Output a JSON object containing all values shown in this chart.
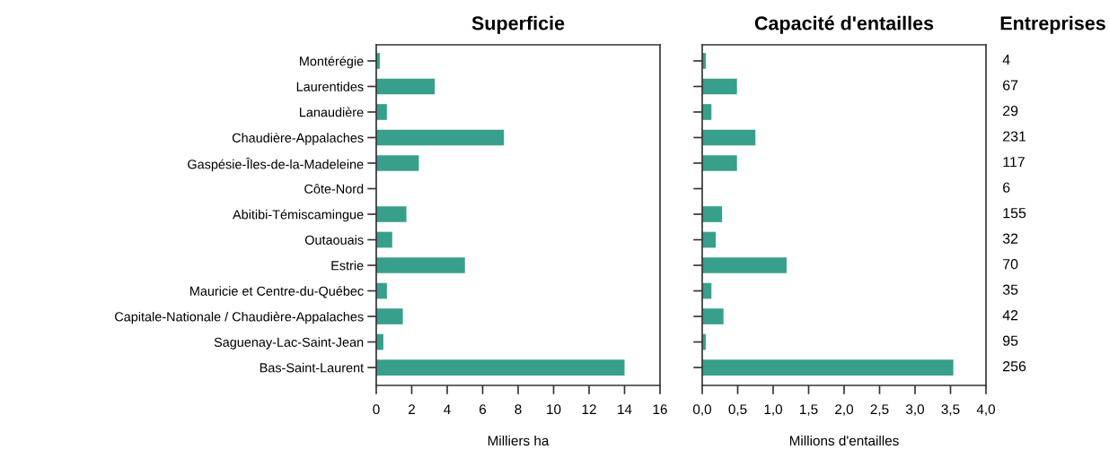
{
  "chart_data": [
    {
      "type": "bar",
      "orientation": "horizontal",
      "title": "Superficie",
      "xlabel": "Milliers ha",
      "categories": [
        "Montérégie",
        "Laurentides",
        "Lanaudière",
        "Chaudière-Appalaches",
        "Gaspésie-Îles-de-la-Madeleine",
        "Côte-Nord",
        "Abitibi-Témiscamingue",
        "Outaouais",
        "Estrie",
        "Mauricie et Centre-du-Québec",
        "Capitale-Nationale / Chaudière-Appalaches",
        "Saguenay-Lac-Saint-Jean",
        "Bas-Saint-Laurent"
      ],
      "values": [
        0.2,
        3.3,
        0.6,
        7.2,
        2.4,
        0,
        1.7,
        0.9,
        5.0,
        0.6,
        1.5,
        0.4,
        14.0
      ],
      "color": "#38a08a",
      "xlim": [
        0,
        16
      ],
      "xticks": [
        0,
        2,
        4,
        6,
        8,
        10,
        12,
        14,
        16
      ]
    },
    {
      "type": "bar",
      "orientation": "horizontal",
      "title": "Capacité d'entailles",
      "xlabel": "Millions d'entailles",
      "values": [
        0.05,
        0.49,
        0.13,
        0.75,
        0.49,
        0,
        0.28,
        0.19,
        1.19,
        0.13,
        0.3,
        0.05,
        3.54
      ],
      "color": "#38a08a",
      "xlim": [
        0,
        4
      ],
      "xticks": [
        {
          "value": 0,
          "label": "0,0"
        },
        {
          "value": 0.5,
          "label": "0,5"
        },
        {
          "value": 1,
          "label": "1,0"
        },
        {
          "value": 1.5,
          "label": "1,5"
        },
        {
          "value": 2,
          "label": "2,0"
        },
        {
          "value": 2.5,
          "label": "2,5"
        },
        {
          "value": 3,
          "label": "3,0"
        },
        {
          "value": 3.5,
          "label": "3,5"
        },
        {
          "value": 4,
          "label": "4,0"
        }
      ],
      "tick_labels": "x"
    },
    {
      "type": "other",
      "title": "Entreprises",
      "values": [
        4,
        67,
        29,
        231,
        117,
        6,
        155,
        32,
        70,
        35,
        42,
        95,
        256
      ],
      "data_labels": true
    }
  ]
}
